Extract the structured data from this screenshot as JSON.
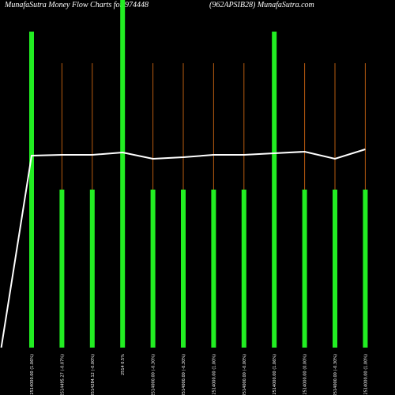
{
  "chart_data": {
    "type": "bar",
    "title": "MunafaSutra  Money Flow  Charts for  974448",
    "subtitle": "(962APSIB28) MunafaSutra.com",
    "categories": [
      null,
      "2514000.00 (1.06%)",
      "2514495.27 (-0.07%)",
      "2514284.12 (-0.00%)",
      "2514 0.5%",
      "2514000.00 (-0.30%)",
      "2514000.00 (-0.30%)",
      "2514000.00 (1.00%)",
      "2514000.00 (-0.00%)",
      "2514000.00 (1.06%)",
      "2514000.00 (0.00%)",
      "2514000.00 (-0.30%)",
      "2514000.00 (1.00%)"
    ],
    "values": [
      null,
      400,
      200,
      200,
      440,
      200,
      200,
      200,
      200,
      400,
      200,
      200,
      200
    ],
    "color": "#22ee22",
    "wick_values": [
      null,
      null,
      360,
      360,
      null,
      360,
      360,
      360,
      360,
      null,
      360,
      360,
      360
    ],
    "wick_color": "#b85c10",
    "line_values": [
      0,
      243,
      244,
      244,
      247,
      239,
      241,
      244,
      244,
      246,
      248,
      239,
      251
    ],
    "line_color": "#ffffff",
    "ylim": [
      0,
      440
    ]
  }
}
